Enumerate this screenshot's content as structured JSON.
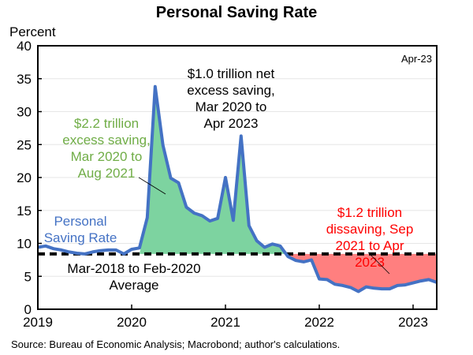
{
  "chart_data": {
    "type": "line",
    "title": "Personal Saving Rate",
    "ylabel": "Percent",
    "xlabel": "",
    "ylim": [
      0,
      40
    ],
    "yticks": [
      0,
      5,
      10,
      15,
      20,
      25,
      30,
      35,
      40
    ],
    "xticks": [
      "2019",
      "2020",
      "2021",
      "2022",
      "2023"
    ],
    "x_start": "2019-01",
    "frequency": "monthly",
    "grid": "horizontal",
    "latest_label": "Apr-23",
    "series": [
      {
        "name": "Personal Saving Rate",
        "color": "#4472C4",
        "x": [
          "2019-01",
          "2019-02",
          "2019-03",
          "2019-04",
          "2019-05",
          "2019-06",
          "2019-07",
          "2019-08",
          "2019-09",
          "2019-10",
          "2019-11",
          "2019-12",
          "2020-01",
          "2020-02",
          "2020-03",
          "2020-04",
          "2020-05",
          "2020-06",
          "2020-07",
          "2020-08",
          "2020-09",
          "2020-10",
          "2020-11",
          "2020-12",
          "2021-01",
          "2021-02",
          "2021-03",
          "2021-04",
          "2021-05",
          "2021-06",
          "2021-07",
          "2021-08",
          "2021-09",
          "2021-10",
          "2021-11",
          "2021-12",
          "2022-01",
          "2022-02",
          "2022-03",
          "2022-04",
          "2022-05",
          "2022-06",
          "2022-07",
          "2022-08",
          "2022-09",
          "2022-10",
          "2022-11",
          "2022-12",
          "2023-01",
          "2023-02",
          "2023-03",
          "2023-04"
        ],
        "values": [
          9.4,
          9.6,
          9.2,
          9.0,
          8.7,
          8.5,
          8.4,
          8.7,
          8.9,
          9.0,
          9.0,
          8.4,
          9.1,
          9.3,
          13.9,
          33.8,
          24.9,
          19.9,
          19.2,
          15.5,
          14.6,
          14.2,
          13.4,
          13.8,
          20.0,
          13.5,
          26.3,
          12.7,
          10.4,
          9.4,
          9.9,
          9.6,
          8.0,
          7.4,
          7.2,
          7.5,
          4.6,
          4.5,
          3.8,
          3.6,
          3.3,
          2.7,
          3.4,
          3.2,
          3.1,
          3.1,
          3.6,
          3.7,
          4.0,
          4.3,
          4.5,
          4.1
        ]
      },
      {
        "name": "Mar-2018 to Feb-2020 Average",
        "color": "#000000",
        "style": "dashed",
        "value": 8.4
      }
    ],
    "fills": [
      {
        "name": "excess saving",
        "color": "#7DD3A0",
        "from": "2020-03",
        "to": "2021-08",
        "above_average": true
      },
      {
        "name": "dissaving",
        "color": "#FF7F7F",
        "from": "2021-09",
        "to": "2023-04",
        "above_average": false
      }
    ],
    "annotations": {
      "series_label": [
        "Personal",
        "Saving Rate"
      ],
      "average_label": [
        "Mar-2018 to Feb-2020",
        "Average"
      ],
      "excess": {
        "lines": [
          "$2.2 trillion",
          "excess saving,",
          "Mar 2020 to",
          "Aug 2021"
        ],
        "color": "#70AD47"
      },
      "net": {
        "lines": [
          "$1.0 trillion net",
          "excess saving,",
          "Mar 2020 to",
          "Apr 2023"
        ],
        "color": "#000000"
      },
      "dissaving": {
        "lines": [
          "$1.2 trillion",
          "dissaving, Sep",
          "2021 to Apr",
          "2023"
        ],
        "color": "#FF0000"
      }
    },
    "source": "Source: Bureau of Economic Analysis; Macrobond; author's calculations."
  }
}
